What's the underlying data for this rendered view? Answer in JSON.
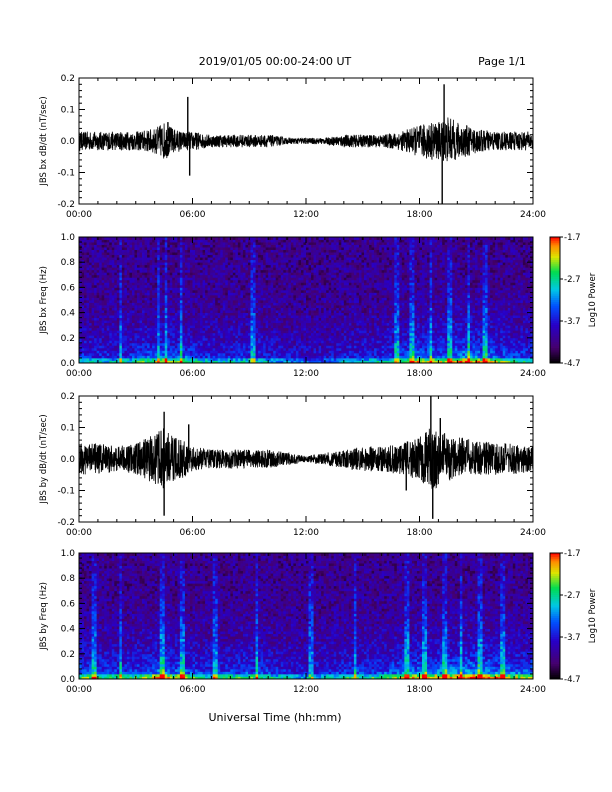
{
  "header": {
    "title": "2019/01/05  00:00-24:00 UT",
    "page": "Page 1/1"
  },
  "footer": {
    "xlabel": "Universal Time (hh:mm)"
  },
  "chart_data": [
    {
      "type": "line",
      "ylabel": "JBS bx dB/dt (nT/sec)",
      "x_ticks": [
        "00:00",
        "06:00",
        "12:00",
        "18:00",
        "24:00"
      ],
      "xlim": [
        0,
        24
      ],
      "ylim": [
        -0.2,
        0.2
      ],
      "y_ticks": [
        "0.2",
        "0.1",
        "0.0",
        "-0.1",
        "-0.2"
      ],
      "x_hours": [
        0,
        1,
        2,
        3,
        4,
        4.5,
        5,
        5.5,
        6,
        7,
        8,
        9,
        10,
        11,
        12,
        13,
        14,
        15,
        16,
        17,
        18,
        18.5,
        19,
        19.5,
        20,
        21,
        22,
        23,
        24
      ],
      "envelope_pos": [
        0.03,
        0.03,
        0.03,
        0.03,
        0.04,
        0.06,
        0.04,
        0.03,
        0.03,
        0.02,
        0.02,
        0.02,
        0.02,
        0.01,
        0.01,
        0.01,
        0.02,
        0.02,
        0.02,
        0.03,
        0.05,
        0.06,
        0.06,
        0.08,
        0.06,
        0.04,
        0.03,
        0.03,
        0.03
      ],
      "envelope_neg": [
        -0.03,
        -0.03,
        -0.03,
        -0.03,
        -0.04,
        -0.06,
        -0.04,
        -0.03,
        -0.03,
        -0.02,
        -0.02,
        -0.02,
        -0.02,
        -0.01,
        -0.01,
        -0.01,
        -0.02,
        -0.02,
        -0.02,
        -0.03,
        -0.05,
        -0.06,
        -0.06,
        -0.07,
        -0.06,
        -0.04,
        -0.03,
        -0.03,
        -0.03
      ],
      "spikes": [
        {
          "x": 4.7,
          "y": 0.06
        },
        {
          "x": 5.75,
          "y": 0.14
        },
        {
          "x": 5.85,
          "y": -0.11
        },
        {
          "x": 19.2,
          "y": -0.2
        },
        {
          "x": 19.3,
          "y": 0.18
        }
      ]
    },
    {
      "type": "heatmap",
      "ylabel": "JBS bx Freq (Hz)",
      "x_ticks": [
        "00:00",
        "06:00",
        "12:00",
        "18:00",
        "24:00"
      ],
      "xlim": [
        0,
        24
      ],
      "ylim": [
        0,
        1.0
      ],
      "y_ticks": [
        "1.0",
        "0.8",
        "0.6",
        "0.4",
        "0.2",
        "0.0"
      ],
      "colorbar": {
        "label": "Log10 Power",
        "ticks": [
          "-1.7",
          "-2.7",
          "-3.7",
          "-4.7"
        ],
        "range": [
          -4.7,
          -1.7
        ]
      },
      "activity_hours": [
        0,
        1,
        2,
        3,
        4,
        4.5,
        5,
        5.5,
        6,
        7,
        8,
        9,
        10,
        11,
        12,
        13,
        14,
        15,
        16,
        17,
        18,
        19,
        20,
        20.5,
        21,
        22,
        23,
        24
      ],
      "activity_level": [
        0.5,
        0.45,
        0.45,
        0.55,
        0.65,
        0.75,
        0.6,
        0.7,
        0.55,
        0.45,
        0.45,
        0.5,
        0.45,
        0.35,
        0.3,
        0.3,
        0.4,
        0.45,
        0.5,
        0.6,
        0.75,
        0.7,
        0.8,
        0.85,
        0.8,
        0.7,
        0.6,
        0.55
      ],
      "streak_hours": [
        2.2,
        4.2,
        4.6,
        5.4,
        9.2,
        16.8,
        17.6,
        18.6,
        19.6,
        20.6,
        21.5
      ]
    },
    {
      "type": "line",
      "ylabel": "JBS by dB/dt (nT/sec)",
      "x_ticks": [
        "00:00",
        "06:00",
        "12:00",
        "18:00",
        "24:00"
      ],
      "xlim": [
        0,
        24
      ],
      "ylim": [
        -0.2,
        0.2
      ],
      "y_ticks": [
        "0.2",
        "0.1",
        "0.0",
        "-0.1",
        "-0.2"
      ],
      "x_hours": [
        0,
        1,
        2,
        3,
        4,
        4.5,
        5,
        5.5,
        6,
        7,
        8,
        9,
        10,
        11,
        12,
        13,
        14,
        15,
        16,
        17,
        18,
        18.5,
        19,
        19.5,
        20,
        21,
        22,
        23,
        24
      ],
      "envelope_pos": [
        0.05,
        0.05,
        0.04,
        0.05,
        0.08,
        0.1,
        0.07,
        0.06,
        0.04,
        0.03,
        0.03,
        0.03,
        0.03,
        0.02,
        0.01,
        0.02,
        0.03,
        0.04,
        0.04,
        0.05,
        0.07,
        0.1,
        0.09,
        0.08,
        0.07,
        0.06,
        0.05,
        0.05,
        0.04
      ],
      "envelope_neg": [
        -0.05,
        -0.05,
        -0.04,
        -0.05,
        -0.08,
        -0.1,
        -0.07,
        -0.06,
        -0.04,
        -0.03,
        -0.03,
        -0.03,
        -0.03,
        -0.02,
        -0.01,
        -0.02,
        -0.03,
        -0.04,
        -0.04,
        -0.05,
        -0.07,
        -0.1,
        -0.09,
        -0.07,
        -0.06,
        -0.05,
        -0.05,
        -0.05,
        -0.04
      ],
      "spikes": [
        {
          "x": 4.5,
          "y": 0.15
        },
        {
          "x": 4.5,
          "y": -0.18
        },
        {
          "x": 5.8,
          "y": 0.11
        },
        {
          "x": 17.3,
          "y": -0.1
        },
        {
          "x": 18.6,
          "y": 0.2
        },
        {
          "x": 18.7,
          "y": -0.19
        },
        {
          "x": 19.1,
          "y": 0.13
        }
      ]
    },
    {
      "type": "heatmap",
      "ylabel": "JBS by Freq (Hz)",
      "x_ticks": [
        "00:00",
        "06:00",
        "12:00",
        "18:00",
        "24:00"
      ],
      "xlim": [
        0,
        24
      ],
      "ylim": [
        0,
        1.0
      ],
      "y_ticks": [
        "1.0",
        "0.8",
        "0.6",
        "0.4",
        "0.2",
        "0.0"
      ],
      "colorbar": {
        "label": "Log10 Power",
        "ticks": [
          "-1.7",
          "-2.7",
          "-3.7",
          "-4.7"
        ],
        "range": [
          -4.7,
          -1.7
        ]
      },
      "activity_hours": [
        0,
        1,
        2,
        3,
        4,
        4.5,
        5,
        5.5,
        6,
        7,
        8,
        9,
        10,
        11,
        12,
        13,
        14,
        15,
        16,
        17,
        18,
        19,
        20,
        20.5,
        21,
        22,
        23,
        24
      ],
      "activity_level": [
        0.65,
        0.6,
        0.55,
        0.6,
        0.75,
        0.85,
        0.7,
        0.75,
        0.6,
        0.5,
        0.55,
        0.6,
        0.55,
        0.45,
        0.4,
        0.45,
        0.55,
        0.55,
        0.6,
        0.7,
        0.8,
        0.8,
        0.85,
        0.9,
        0.9,
        0.8,
        0.7,
        0.65
      ],
      "streak_hours": [
        0.8,
        2.2,
        4.4,
        5.5,
        7.2,
        9.4,
        12.3,
        14.6,
        17.3,
        18.3,
        19.3,
        20.2,
        21.2,
        22.4
      ]
    }
  ]
}
